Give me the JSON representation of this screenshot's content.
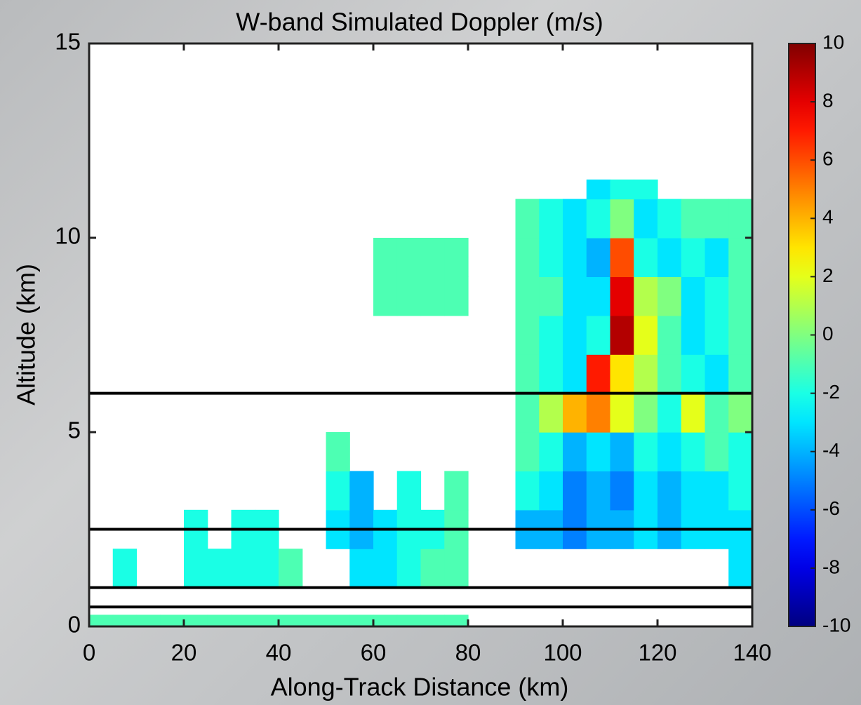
{
  "chart_data": {
    "type": "heatmap",
    "title": "W-band Simulated Doppler (m/s)",
    "xlabel": "Along-Track Distance (km)",
    "ylabel": "Altitude (km)",
    "xlim": [
      0,
      140
    ],
    "ylim": [
      0,
      15
    ],
    "xticks": [
      0,
      20,
      40,
      60,
      80,
      100,
      120,
      140
    ],
    "yticks": [
      0,
      5,
      10,
      15
    ],
    "xbins": [
      0,
      5,
      10,
      15,
      20,
      25,
      30,
      35,
      40,
      45,
      50,
      55,
      60,
      65,
      70,
      75,
      80,
      85,
      90,
      95,
      100,
      105,
      110,
      115,
      120,
      125,
      130,
      135,
      140
    ],
    "ybins": [
      0,
      0.3,
      1,
      2,
      3,
      4,
      5,
      6,
      7,
      8,
      9,
      10,
      11,
      11.5
    ],
    "values": [
      [
        -1,
        -1,
        -1,
        -1,
        -1,
        -1,
        -1,
        -1,
        -1,
        -1,
        -1,
        -1,
        -1,
        -1,
        -1,
        -1,
        null,
        null,
        null,
        null,
        null,
        null,
        null,
        null,
        null,
        null,
        null,
        null
      ],
      [
        null,
        null,
        null,
        null,
        null,
        null,
        null,
        null,
        null,
        null,
        null,
        null,
        null,
        null,
        null,
        null,
        null,
        null,
        null,
        null,
        null,
        null,
        null,
        null,
        null,
        null,
        null,
        null
      ],
      [
        null,
        -2,
        null,
        null,
        -2,
        -2,
        -2,
        -2,
        -1,
        null,
        null,
        -3,
        -3,
        -2,
        -1,
        -1,
        null,
        null,
        null,
        null,
        null,
        null,
        null,
        null,
        null,
        null,
        null,
        -3
      ],
      [
        null,
        null,
        null,
        null,
        -2,
        null,
        -2,
        -2,
        null,
        null,
        -3,
        -4,
        -3,
        -2,
        -2,
        -1,
        null,
        null,
        -4,
        -4,
        -5,
        -4,
        -4,
        -3,
        -4,
        -3,
        -3,
        -3
      ],
      [
        null,
        null,
        null,
        null,
        null,
        null,
        null,
        null,
        null,
        null,
        -2,
        -4,
        null,
        -2,
        null,
        -1,
        null,
        null,
        -2,
        -3,
        -5,
        -4,
        -5,
        -3,
        -4,
        -3,
        -3,
        -2
      ],
      [
        null,
        null,
        null,
        null,
        null,
        null,
        null,
        null,
        null,
        null,
        -1,
        null,
        null,
        null,
        null,
        null,
        null,
        null,
        -1,
        -2,
        -4,
        -3,
        -4,
        -2,
        -3,
        -2,
        -1,
        -2
      ],
      [
        null,
        null,
        null,
        null,
        null,
        null,
        null,
        null,
        null,
        null,
        null,
        null,
        null,
        null,
        null,
        null,
        null,
        null,
        -1,
        1,
        4,
        5,
        2,
        0,
        -2,
        2,
        -1,
        0
      ],
      [
        null,
        null,
        null,
        null,
        null,
        null,
        null,
        null,
        null,
        null,
        null,
        null,
        null,
        null,
        null,
        null,
        null,
        null,
        -1,
        -2,
        -3,
        7,
        3,
        1,
        -1,
        -2,
        -3,
        -1
      ],
      [
        null,
        null,
        null,
        null,
        null,
        null,
        null,
        null,
        null,
        null,
        null,
        null,
        null,
        null,
        null,
        null,
        null,
        null,
        -1,
        -2,
        -3,
        -2,
        9,
        2,
        -1,
        -3,
        -2,
        -1
      ],
      [
        null,
        null,
        null,
        null,
        null,
        null,
        null,
        null,
        null,
        null,
        null,
        null,
        -1,
        -1,
        -1,
        -1,
        null,
        null,
        -1,
        -1,
        -3,
        -3,
        8,
        1,
        0,
        -3,
        -2,
        -1
      ],
      [
        null,
        null,
        null,
        null,
        null,
        null,
        null,
        null,
        null,
        null,
        null,
        null,
        -1,
        -1,
        -1,
        -1,
        null,
        null,
        -1,
        -2,
        -3,
        -4,
        6,
        -2,
        -3,
        -2,
        -3,
        -1
      ],
      [
        null,
        null,
        null,
        null,
        null,
        null,
        null,
        null,
        null,
        null,
        null,
        null,
        null,
        null,
        null,
        null,
        null,
        null,
        -1,
        -2,
        -3,
        -2,
        0,
        -3,
        -2,
        -1,
        -1,
        -1
      ],
      [
        null,
        null,
        null,
        null,
        null,
        null,
        null,
        null,
        null,
        null,
        null,
        null,
        null,
        null,
        null,
        null,
        null,
        null,
        null,
        null,
        null,
        -3,
        -2,
        -2,
        null,
        null,
        null,
        null
      ]
    ],
    "hlines": [
      6,
      2.5,
      1,
      0.5
    ],
    "hline_color": "#000000",
    "colormap": "jet",
    "clim": [
      -10,
      10
    ],
    "cticks": [
      -10,
      -8,
      -6,
      -4,
      -2,
      0,
      2,
      4,
      6,
      8,
      10
    ],
    "grid": false
  }
}
